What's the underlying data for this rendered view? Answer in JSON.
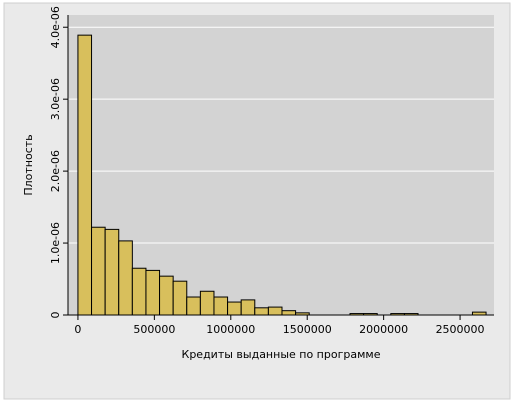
{
  "chart_data": {
    "type": "histogram",
    "xlabel": "Кредиты выданные по программе",
    "ylabel": "Плотность",
    "bins": [
      0,
      89000,
      178000,
      267000,
      356000,
      445000,
      534000,
      623000,
      712000,
      801000,
      890000,
      979000,
      1068000,
      1157000,
      1246000,
      1335000,
      1424000,
      1513000,
      1602000,
      1691000,
      1780000,
      1869000,
      1958000,
      2047000,
      2136000,
      2225000,
      2314000,
      2403000,
      2492000,
      2581000,
      2670000
    ],
    "values": [
      3.89e-06,
      1.22e-06,
      1.19e-06,
      1.03e-06,
      6.5e-07,
      6.2e-07,
      5.4e-07,
      4.7e-07,
      2.5e-07,
      3.3e-07,
      2.5e-07,
      1.8e-07,
      2.1e-07,
      1e-07,
      1.1e-07,
      6e-08,
      3e-08,
      0,
      0,
      0,
      2e-08,
      2e-08,
      0,
      2e-08,
      2e-08,
      0,
      0,
      0,
      0,
      4e-08
    ],
    "color": "#d8bf5c",
    "xlim": [
      -65000,
      2722000
    ],
    "xticks": [
      0,
      500000,
      1000000,
      1500000,
      2000000,
      2500000
    ],
    "ylim": [
      0,
      4.17e-06
    ],
    "yticks": [
      0,
      {
        "value": 1e-06,
        "label": "1.0e-06"
      },
      {
        "value": 2e-06,
        "label": "2.0e-06"
      },
      {
        "value": 3e-06,
        "label": "3.0e-06"
      },
      {
        "value": 4e-06,
        "label": "4.0e-06"
      }
    ],
    "grid": true
  }
}
